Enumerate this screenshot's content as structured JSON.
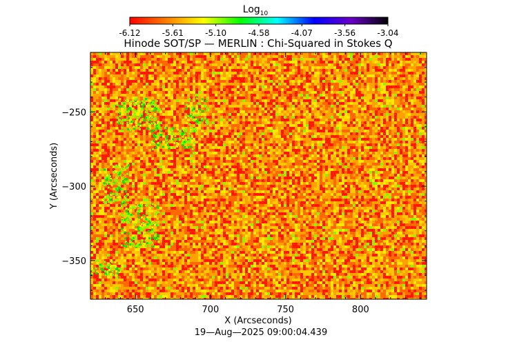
{
  "colorbar": {
    "label_main": "Log",
    "label_sub": "10",
    "ticks": [
      "-6.12",
      "-5.61",
      "-5.10",
      "-4.58",
      "-4.07",
      "-3.56",
      "-3.04"
    ],
    "range": [
      -6.12,
      -3.04
    ],
    "colormap": [
      "#ff0000",
      "#ff8000",
      "#ffff00",
      "#00ff00",
      "#00ffff",
      "#0000ff",
      "#6a00c8",
      "#000000"
    ]
  },
  "chart_data": {
    "type": "heatmap",
    "title": "Hinode SOT/SP — MERLIN : Chi-Squared in Stokes Q",
    "xlabel": "X (Arcseconds)",
    "ylabel": "Y (Arcseconds)",
    "xlim": [
      620,
      844
    ],
    "ylim": [
      -376,
      -210
    ],
    "x_ticks": [
      650,
      700,
      750,
      800
    ],
    "y_ticks": [
      -250,
      -300,
      -350
    ],
    "dominant_value_range": [
      -5.75,
      -5.35
    ],
    "palette": [
      "#ff0000",
      "#ff5a00",
      "#ff9b00",
      "#ffc800",
      "#ffee00",
      "#78ff00",
      "#00e600"
    ],
    "low_chi_regions": [
      {
        "x": [
          637,
          666
        ],
        "y": [
          -262,
          -240
        ]
      },
      {
        "x": [
          660,
          690
        ],
        "y": [
          -275,
          -260
        ]
      },
      {
        "x": [
          683,
          698
        ],
        "y": [
          -258,
          -240
        ]
      },
      {
        "x": [
          628,
          645
        ],
        "y": [
          -310,
          -285
        ]
      },
      {
        "x": [
          640,
          665
        ],
        "y": [
          -340,
          -310
        ]
      },
      {
        "x": [
          620,
          640
        ],
        "y": [
          -360,
          -350
        ]
      }
    ]
  },
  "timestamp": "19—Aug—2025 09:00:04.439"
}
